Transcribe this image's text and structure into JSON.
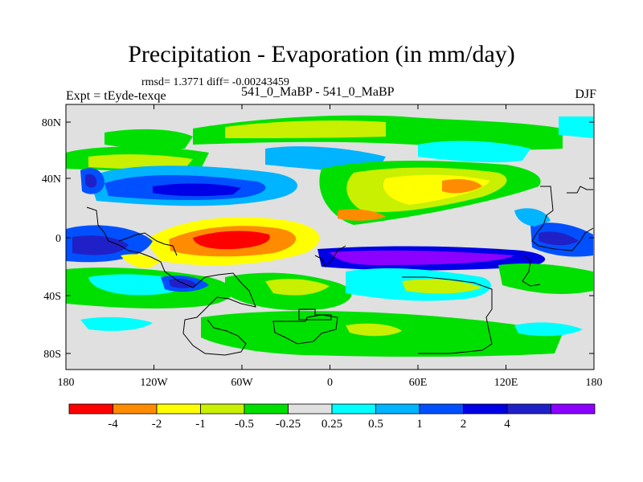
{
  "title": "Precipitation - Evaporation (in mm/day)",
  "stats_line": "rmsd= 1.3771 diff= -0.00243459",
  "experiment": "Expt = tEyde-texqe",
  "case_label": "541_0_MaBP - 541_0_MaBP",
  "season": "DJF",
  "lat_ticks": [
    "80N",
    "40N",
    "0",
    "40S",
    "80S"
  ],
  "lon_ticks": [
    "180",
    "120W",
    "60W",
    "0",
    "60E",
    "120E",
    "180"
  ],
  "colorbar": {
    "colors": [
      "#ff0000",
      "#ff8c00",
      "#ffff00",
      "#c8f000",
      "#00e000",
      "#e0e0e0",
      "#00ffff",
      "#00b4ff",
      "#0050ff",
      "#0000e6",
      "#2020c8",
      "#8c00ff"
    ],
    "labels": [
      "-4",
      "-2",
      "-1",
      "-0.5",
      "-0.25",
      "0.25",
      "0.5",
      "1",
      "2",
      "4"
    ]
  },
  "map_colors": {
    "background": "#e0e0e0",
    "coastline": "#000000"
  }
}
